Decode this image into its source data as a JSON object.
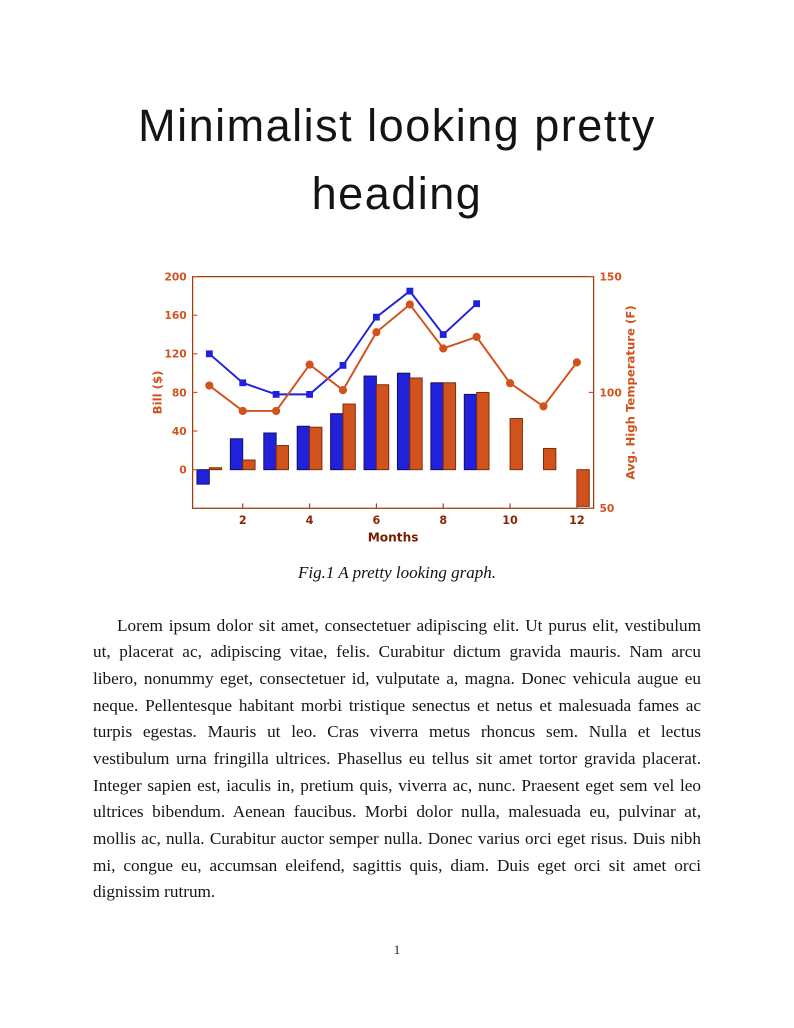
{
  "page": {
    "heading": "Minimalist looking pretty heading",
    "figure_caption": "Fig.1 A pretty looking graph.",
    "body_paragraph": "Lorem ipsum dolor sit amet, consectetuer adipiscing elit. Ut purus elit, vestibulum ut, placerat ac, adipiscing vitae, felis. Curabitur dictum gravida mauris. Nam arcu libero, nonummy eget, consectetuer id, vulputate a, magna. Donec vehicula augue eu neque. Pellentesque habitant morbi tristique senectus et netus et malesuada fames ac turpis egestas. Mauris ut leo. Cras viverra metus rhoncus sem. Nulla et lectus vestibulum urna fringilla ultrices. Phasellus eu tellus sit amet tortor gravida placerat. Integer sapien est, iaculis in, pretium quis, viverra ac, nunc. Praesent eget sem vel leo ultrices bibendum. Aenean faucibus. Morbi dolor nulla, malesuada eu, pulvinar at, mollis ac, nulla. Curabitur auctor semper nulla. Donec varius orci eget risus. Duis nibh mi, congue eu, accumsan eleifend, sagittis quis, diam. Duis eget orci sit amet orci dignissim rutrum.",
    "page_number": "1"
  },
  "chart_data": {
    "type": "bar",
    "subtype": "grouped bars with two overlay lines, dual y-axes",
    "x": [
      1,
      2,
      3,
      4,
      5,
      6,
      7,
      8,
      9,
      10,
      11,
      12
    ],
    "xlabel": "Months",
    "x_ticks": [
      2,
      4,
      6,
      8,
      10,
      12
    ],
    "x_axis_color": "#8b2408",
    "plot_box_color": "#9e3f10",
    "grid": false,
    "legend": "none",
    "left_axis": {
      "label": "Bill ($)",
      "ticks": [
        0,
        40,
        80,
        120,
        160,
        200
      ],
      "range": [
        -40,
        200
      ],
      "color": "#d2521e"
    },
    "right_axis": {
      "label": "Avg. High Temperature (F)",
      "ticks": [
        50,
        100,
        150
      ],
      "range": [
        50,
        150
      ],
      "color": "#d2521e"
    },
    "bar_series": [
      {
        "name": "bill-bars-blue",
        "color": "#2121dc",
        "edge": "#101060",
        "values": [
          -15,
          32,
          38,
          45,
          58,
          97,
          100,
          90,
          78,
          null,
          null,
          null
        ]
      },
      {
        "name": "temp-bars-orange",
        "color": "#d2521e",
        "edge": "#7c2d06",
        "values": [
          2,
          10,
          25,
          44,
          68,
          88,
          95,
          90,
          80,
          53,
          22,
          -38
        ]
      }
    ],
    "line_series": [
      {
        "name": "bill-line-blue",
        "axis": "left",
        "color": "#2121dc",
        "marker": "square",
        "values": [
          120,
          90,
          78,
          78,
          108,
          158,
          185,
          140,
          172,
          null,
          null,
          null
        ]
      },
      {
        "name": "temp-line-orange",
        "axis": "right",
        "color": "#d2521e",
        "marker": "circle",
        "values": [
          103,
          92,
          92,
          112,
          101,
          126,
          138,
          119,
          124,
          104,
          94,
          113
        ]
      }
    ]
  }
}
